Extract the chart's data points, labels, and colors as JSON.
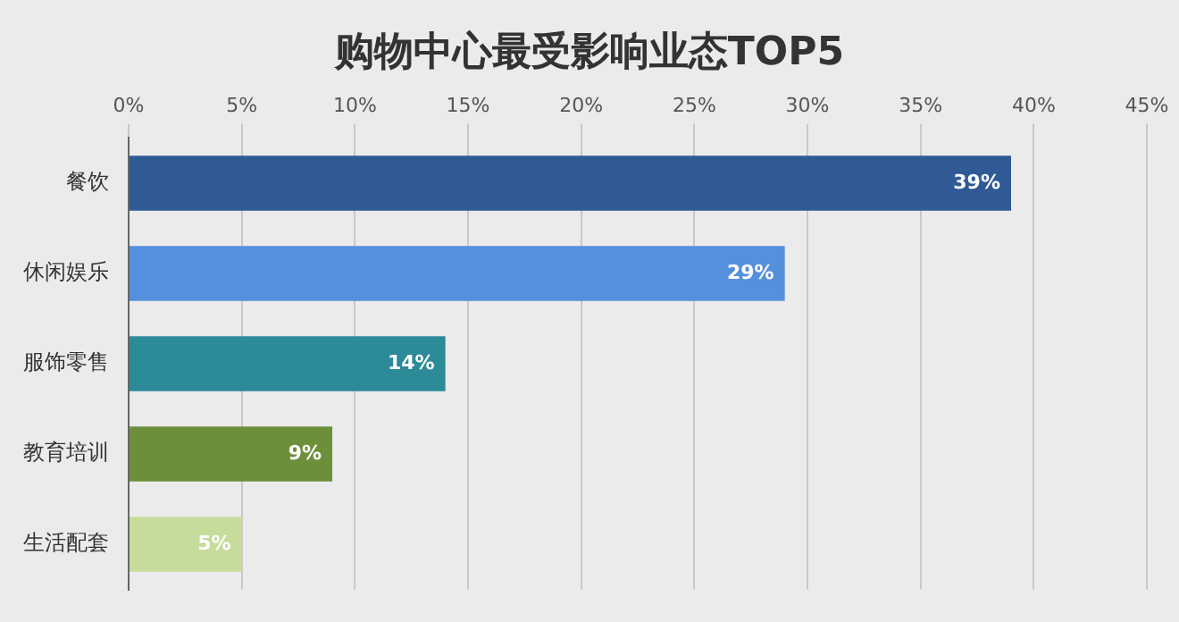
{
  "chart_data": {
    "type": "bar",
    "orientation": "horizontal",
    "title": "购物中心最受影响业态TOP5",
    "categories": [
      "餐饮",
      "休闲娱乐",
      "服饰零售",
      "教育培训",
      "生活配套"
    ],
    "values": [
      39,
      29,
      14,
      9,
      5
    ],
    "value_labels": [
      "39%",
      "29%",
      "14%",
      "9%",
      "5%"
    ],
    "colors": [
      "#2f5a96",
      "#5590dc",
      "#2d8a98",
      "#6e8f3a",
      "#c6dc9c"
    ],
    "xlim": [
      0,
      45
    ],
    "xticks": [
      {
        "value": 0,
        "label": "0%"
      },
      {
        "value": 5,
        "label": "5%"
      },
      {
        "value": 10,
        "label": "10%"
      },
      {
        "value": 15,
        "label": "15%"
      },
      {
        "value": 20,
        "label": "20%"
      },
      {
        "value": 25,
        "label": "25%"
      },
      {
        "value": 30,
        "label": "30%"
      },
      {
        "value": 35,
        "label": "35%"
      },
      {
        "value": 40,
        "label": "40%"
      },
      {
        "value": 45,
        "label": "45%"
      }
    ],
    "grid": "x",
    "legend": false
  }
}
